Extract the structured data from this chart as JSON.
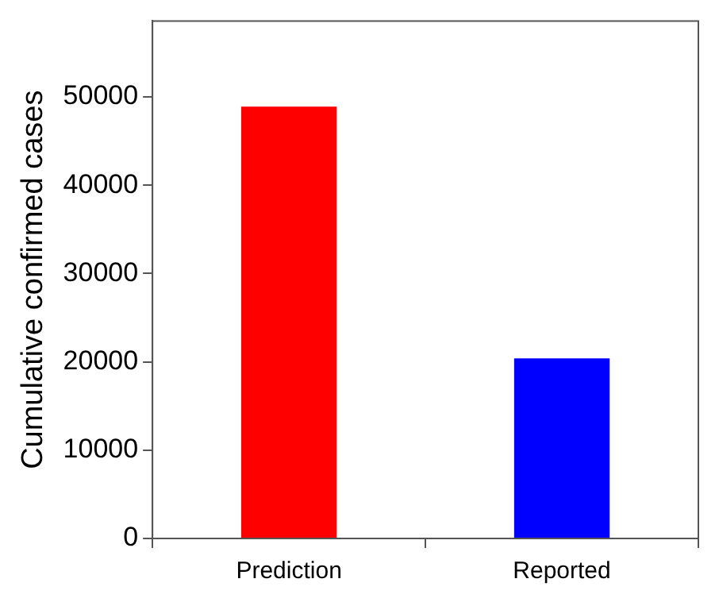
{
  "chart_data": {
    "type": "bar",
    "ylabel": "Cumulative confirmed cases",
    "categories": [
      "Prediction",
      "Reported"
    ],
    "values": [
      48900,
      20400
    ],
    "colors": [
      "#ff0000",
      "#0000ff"
    ],
    "ylim": [
      0,
      58600
    ],
    "yticks": [
      0,
      10000,
      20000,
      30000,
      40000,
      50000
    ],
    "grid": false,
    "legend": false
  }
}
